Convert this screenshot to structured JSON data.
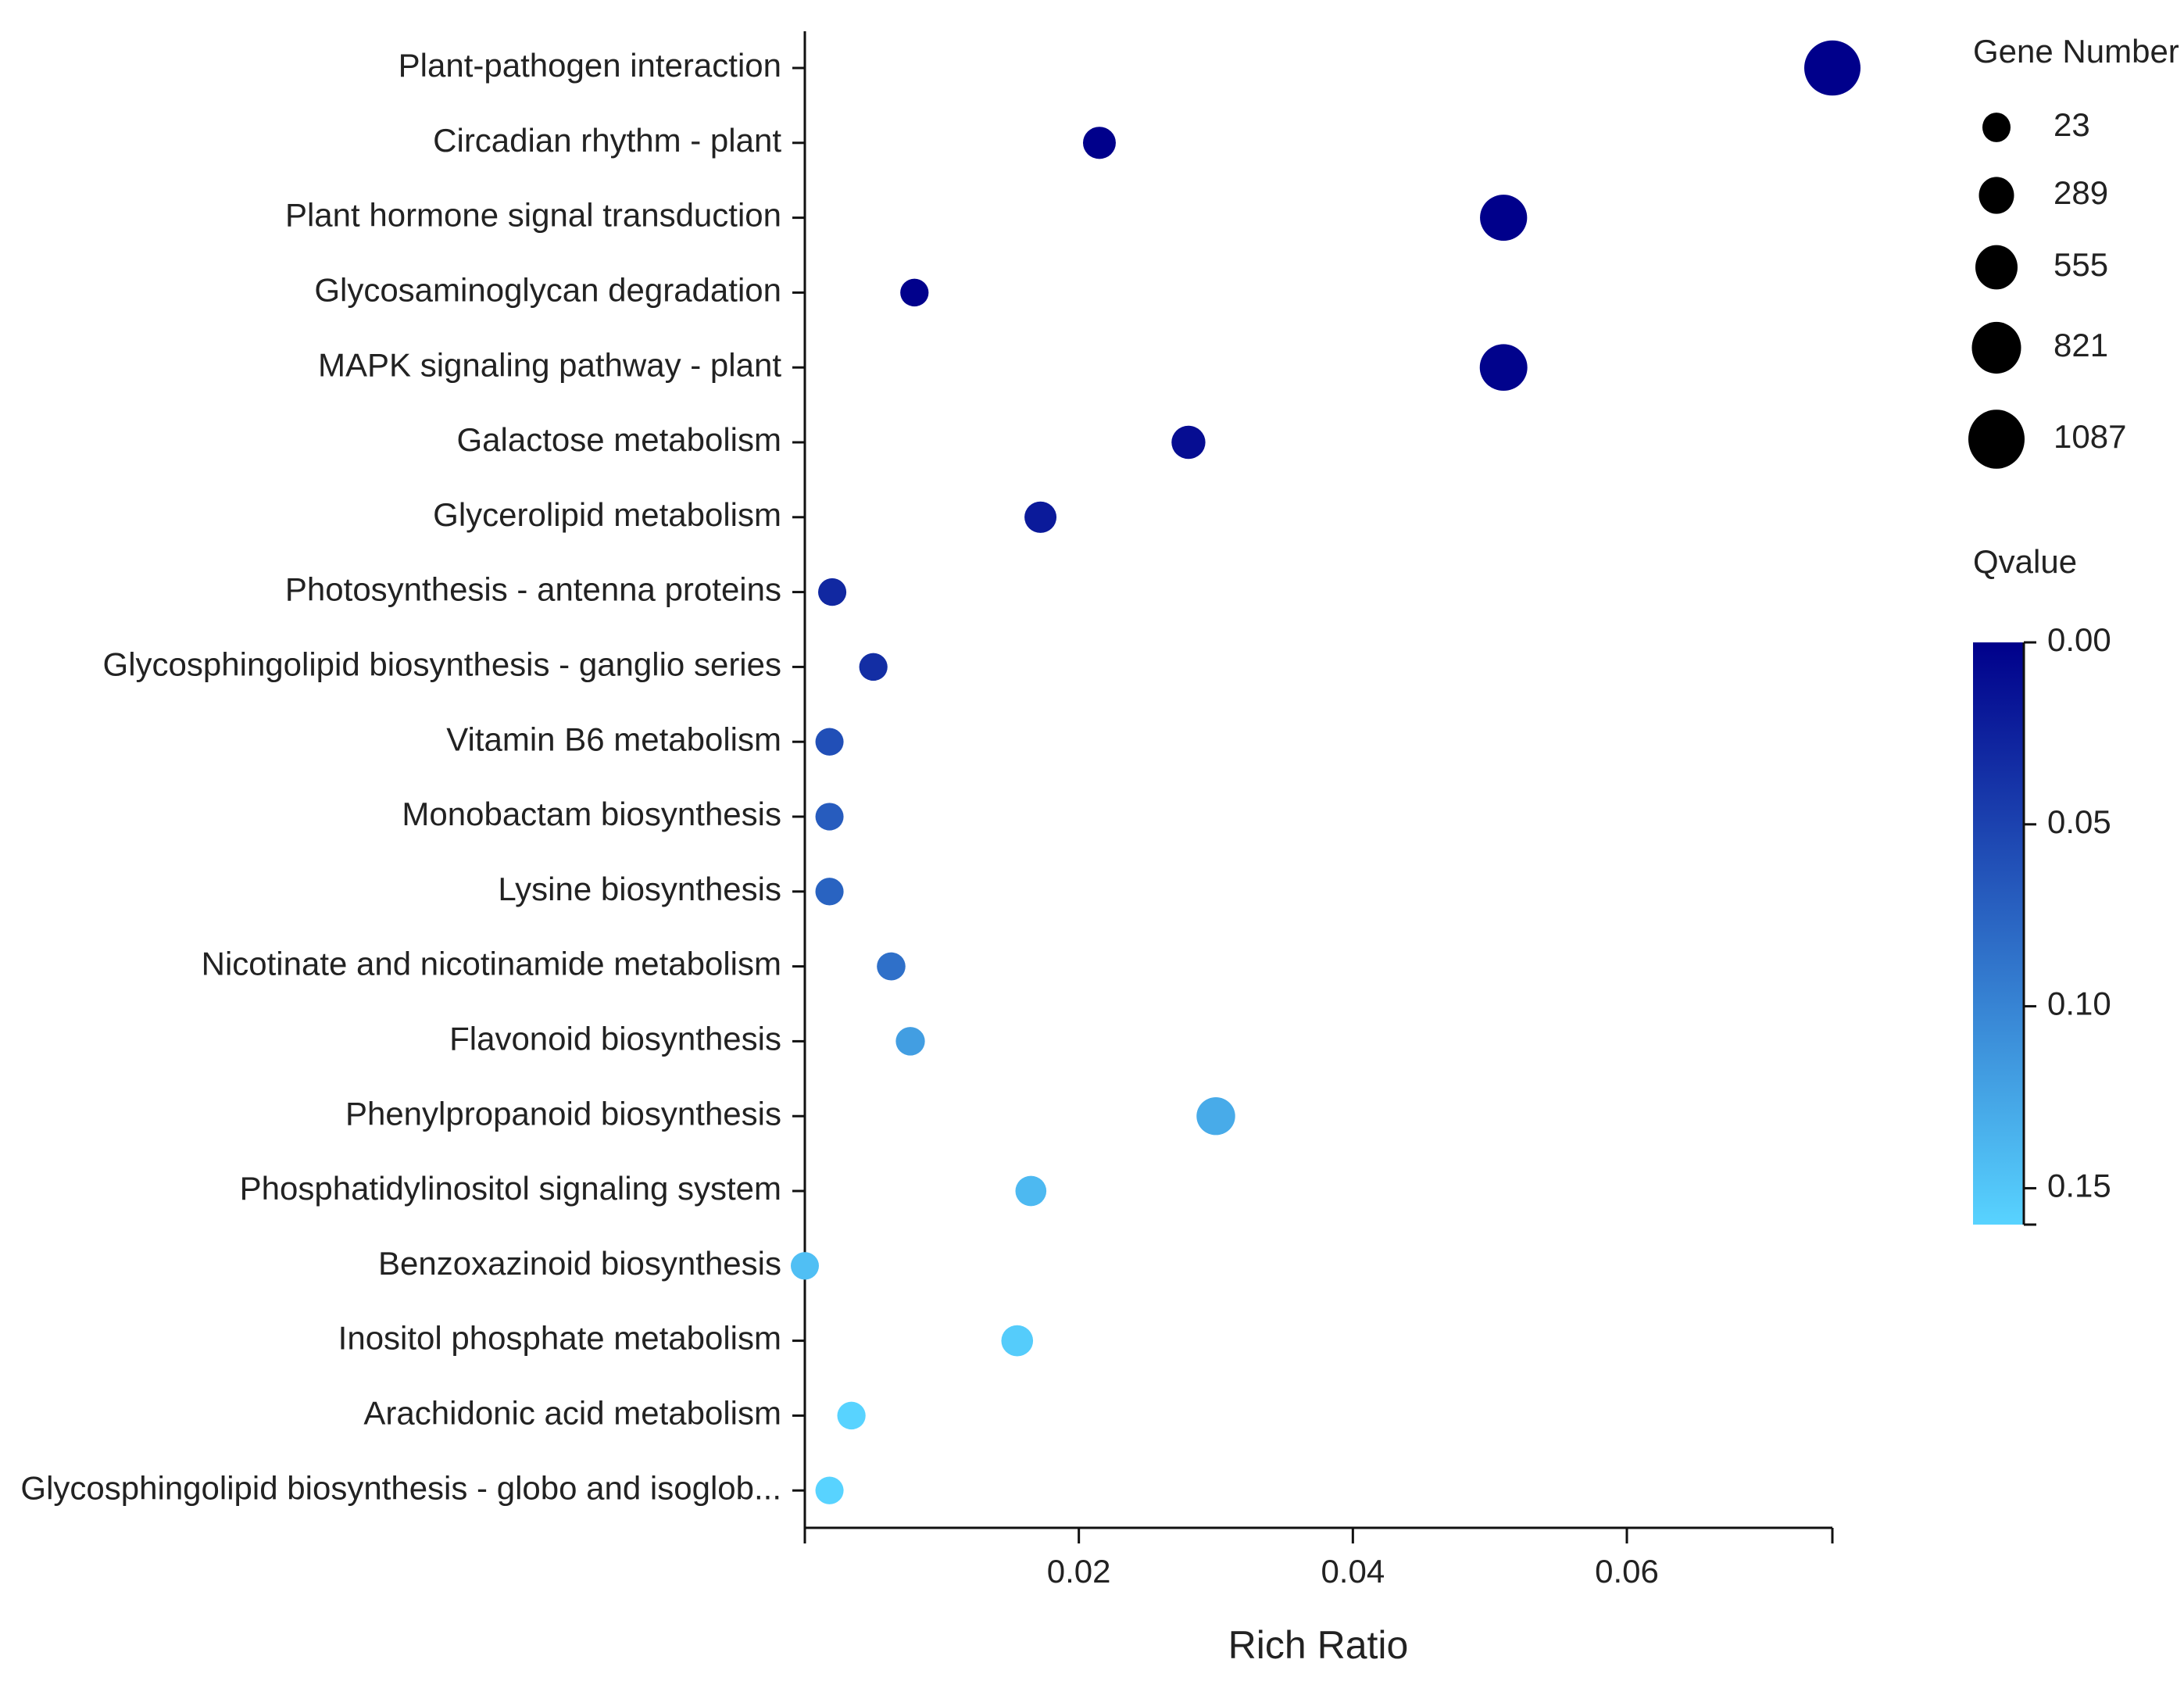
{
  "chart_data": {
    "type": "scatter",
    "subtype": "bubble",
    "xlabel": "Rich Ratio",
    "xlim": [
      0,
      0.075
    ],
    "xticks": [
      0.02,
      0.04,
      0.06
    ],
    "xtick_labels": [
      "0.02",
      "0.04",
      "0.06"
    ],
    "categories": [
      "Plant-pathogen interaction",
      "Circadian rhythm - plant",
      "Plant hormone signal transduction",
      "Glycosaminoglycan degradation",
      "MAPK signaling pathway - plant",
      "Galactose metabolism",
      "Glycerolipid metabolism",
      "Photosynthesis - antenna proteins",
      "Glycosphingolipid biosynthesis - ganglio series",
      "Vitamin B6 metabolism",
      "Monobactam biosynthesis",
      "Lysine biosynthesis",
      "Nicotinate and nicotinamide metabolism",
      "Flavonoid biosynthesis",
      "Phenylpropanoid biosynthesis",
      "Phosphatidylinositol signaling system",
      "Benzoxazinoid biosynthesis",
      "Inositol phosphate metabolism",
      "Arachidonic acid metabolism",
      "Glycosphingolipid biosynthesis - globo and isoglob..."
    ],
    "points": [
      {
        "category": "Plant-pathogen interaction",
        "rich_ratio": 0.075,
        "gene_number": 1087,
        "qvalue": 0.0
      },
      {
        "category": "Circadian rhythm - plant",
        "rich_ratio": 0.0215,
        "gene_number": 200,
        "qvalue": 0.0
      },
      {
        "category": "Plant hormone signal transduction",
        "rich_ratio": 0.051,
        "gene_number": 740,
        "qvalue": 0.0
      },
      {
        "category": "Glycosaminoglycan degradation",
        "rich_ratio": 0.008,
        "gene_number": 30,
        "qvalue": 0.001
      },
      {
        "category": "MAPK signaling pathway - plant",
        "rich_ratio": 0.051,
        "gene_number": 760,
        "qvalue": 0.002
      },
      {
        "category": "Galactose metabolism",
        "rich_ratio": 0.028,
        "gene_number": 240,
        "qvalue": 0.01
      },
      {
        "category": "Glycerolipid metabolism",
        "rich_ratio": 0.0172,
        "gene_number": 170,
        "qvalue": 0.02
      },
      {
        "category": "Photosynthesis - antenna proteins",
        "rich_ratio": 0.002,
        "gene_number": 25,
        "qvalue": 0.03
      },
      {
        "category": "Glycosphingolipid biosynthesis - ganglio series",
        "rich_ratio": 0.005,
        "gene_number": 30,
        "qvalue": 0.035
      },
      {
        "category": "Vitamin B6 metabolism",
        "rich_ratio": 0.0018,
        "gene_number": 24,
        "qvalue": 0.06
      },
      {
        "category": "Monobactam biosynthesis",
        "rich_ratio": 0.0018,
        "gene_number": 24,
        "qvalue": 0.07
      },
      {
        "category": "Lysine biosynthesis",
        "rich_ratio": 0.0018,
        "gene_number": 24,
        "qvalue": 0.075
      },
      {
        "category": "Nicotinate and nicotinamide metabolism",
        "rich_ratio": 0.0063,
        "gene_number": 40,
        "qvalue": 0.085
      },
      {
        "category": "Flavonoid biosynthesis",
        "rich_ratio": 0.0077,
        "gene_number": 60,
        "qvalue": 0.12
      },
      {
        "category": "Phenylpropanoid biosynthesis",
        "rich_ratio": 0.03,
        "gene_number": 420,
        "qvalue": 0.13
      },
      {
        "category": "Phosphatidylinositol signaling system",
        "rich_ratio": 0.0165,
        "gene_number": 130,
        "qvalue": 0.14
      },
      {
        "category": "Benzoxazinoid biosynthesis",
        "rich_ratio": 0.0,
        "gene_number": 23,
        "qvalue": 0.145
      },
      {
        "category": "Inositol phosphate metabolism",
        "rich_ratio": 0.0155,
        "gene_number": 160,
        "qvalue": 0.155
      },
      {
        "category": "Arachidonic acid metabolism",
        "rich_ratio": 0.0034,
        "gene_number": 30,
        "qvalue": 0.16
      },
      {
        "category": "Glycosphingolipid biosynthesis - globo and isoglob...",
        "rich_ratio": 0.0018,
        "gene_number": 24,
        "qvalue": 0.16
      }
    ],
    "size_legend": {
      "title": "Gene Number",
      "values": [
        23,
        289,
        555,
        821,
        1087
      ],
      "labels": [
        "23",
        "289",
        "555",
        "821",
        "1087"
      ]
    },
    "color_legend": {
      "title": "Qvalue",
      "range": [
        0,
        0.16
      ],
      "ticks": [
        0.0,
        0.05,
        0.1,
        0.15
      ],
      "tick_labels": [
        "0.00",
        "0.05",
        "0.10",
        "0.15"
      ],
      "color_low": "#00008B",
      "color_high": "#58D3FF"
    }
  }
}
